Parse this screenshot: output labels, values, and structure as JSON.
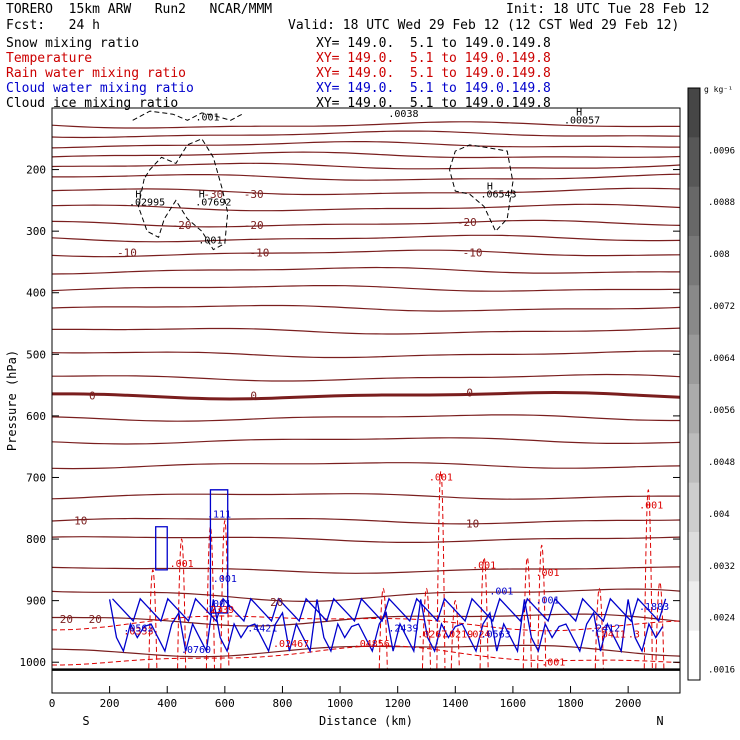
{
  "header": {
    "model": "TORERO  15km ARW   Run2   NCAR/MMM",
    "init": "Init: 18 UTC Tue 28 Feb 12",
    "fcst": "Fcst:   24 h",
    "valid": "Valid: 18 UTC Wed 29 Feb 12 (12 CST Wed 29 Feb 12)"
  },
  "fields": [
    {
      "name": "Snow mixing ratio",
      "xy": "XY= 149.0.  5.1 to 149.0.149.8",
      "color": "#000000"
    },
    {
      "name": "Temperature",
      "xy": "XY= 149.0.  5.1 to 149.0.149.8",
      "color": "#cc0000"
    },
    {
      "name": "Rain water mixing ratio",
      "xy": "XY= 149.0.  5.1 to 149.0.149.8",
      "color": "#cc0000"
    },
    {
      "name": "Cloud water mixing ratio",
      "xy": "XY= 149.0.  5.1 to 149.0.149.8",
      "color": "#0000cc"
    },
    {
      "name": "Cloud ice mixing ratio",
      "xy": "XY= 149.0.  5.1 to 149.0.149.8",
      "color": "#000000"
    }
  ],
  "colorbar": {
    "unit": "g kg⁻¹",
    "ticks": [
      ".0096",
      ".0088",
      ".008",
      ".0072",
      ".0064",
      ".0056",
      ".0048",
      ".004",
      ".0032",
      ".0024",
      ".0016"
    ]
  },
  "colors": {
    "temperature": "#7a1e1e",
    "rain": "#dd0000",
    "cloud_water": "#0000cc",
    "snow": "#000000"
  },
  "chart_data": {
    "type": "line",
    "xlabel": "Distance (km)",
    "ylabel": "Pressure (hPa)",
    "xlim": [
      0,
      2180
    ],
    "ylim": [
      1050,
      100
    ],
    "x_ticks": [
      0,
      200,
      400,
      600,
      800,
      1000,
      1200,
      1400,
      1600,
      1800,
      2000
    ],
    "y_ticks": [
      200,
      300,
      400,
      500,
      600,
      700,
      800,
      900,
      1000
    ],
    "left_label": "S",
    "right_label": "N",
    "temperature_isotherms": [
      {
        "label": "-30",
        "label_at": [
          [
            560,
            240
          ],
          [
            700,
            240
          ]
        ]
      },
      {
        "label": "-20",
        "label_at": [
          [
            450,
            290
          ],
          [
            700,
            290
          ],
          [
            1440,
            285
          ]
        ]
      },
      {
        "label": "-10",
        "label_at": [
          [
            260,
            335
          ],
          [
            720,
            335
          ],
          [
            1460,
            335
          ]
        ]
      },
      {
        "label": "0",
        "label_at": [
          [
            140,
            567
          ],
          [
            700,
            567
          ],
          [
            1450,
            562
          ]
        ]
      },
      {
        "label": "10",
        "label_at": [
          [
            100,
            770
          ],
          [
            1460,
            775
          ]
        ]
      },
      {
        "label": "20",
        "label_at": [
          [
            50,
            930
          ],
          [
            150,
            930
          ],
          [
            780,
            902
          ]
        ]
      }
    ],
    "snow_max": [
      {
        "label": ".001",
        "x": 540,
        "p": 120
      },
      {
        "label": ".0038",
        "x": 1220,
        "p": 115
      },
      {
        "label": ".00057",
        "x": 1840,
        "p": 125
      },
      {
        "label": ".02995",
        "x": 330,
        "p": 258
      },
      {
        "label": ".07692",
        "x": 560,
        "p": 258
      },
      {
        "label": ".06543",
        "x": 1550,
        "p": 245
      },
      {
        "label": ".001",
        "x": 550,
        "p": 320
      }
    ],
    "high_markers": [
      {
        "x": 300,
        "p": 245,
        "color": "#000000"
      },
      {
        "x": 520,
        "p": 245,
        "color": "#000000"
      },
      {
        "x": 1520,
        "p": 232,
        "color": "#000000"
      },
      {
        "x": 1830,
        "p": 112,
        "color": "#000000"
      }
    ],
    "rain_labels": [
      {
        "label": ".001",
        "x": 1350,
        "p": 705
      },
      {
        "label": ".001",
        "x": 2080,
        "p": 750
      },
      {
        "label": ".001",
        "x": 450,
        "p": 845
      },
      {
        "label": ".001",
        "x": 1500,
        "p": 848
      },
      {
        "label": ".001",
        "x": 1720,
        "p": 860
      },
      {
        "label": ".001",
        "x": 1740,
        "p": 1005
      },
      {
        "label": ".0333",
        "x": 300,
        "p": 955
      },
      {
        "label": ".2339",
        "x": 580,
        "p": 920
      },
      {
        "label": ".02467",
        "x": 830,
        "p": 975
      },
      {
        "label": ".04856",
        "x": 1110,
        "p": 975
      },
      {
        "label": ".0267",
        "x": 1320,
        "p": 960
      },
      {
        "label": ".0219",
        "x": 1410,
        "p": 960
      },
      {
        "label": ".024",
        "x": 1480,
        "p": 960
      },
      {
        "label": ".0411",
        "x": 1940,
        "p": 960
      },
      {
        "label": ".3",
        "x": 2020,
        "p": 960
      }
    ],
    "cloud_water_labels": [
      {
        "label": ".111",
        "x": 580,
        "p": 765
      },
      {
        "label": ".001",
        "x": 600,
        "p": 870
      },
      {
        "label": ".001",
        "x": 580,
        "p": 910
      },
      {
        "label": ".0562",
        "x": 300,
        "p": 950
      },
      {
        "label": ".4421",
        "x": 730,
        "p": 950
      },
      {
        "label": ".2439",
        "x": 1220,
        "p": 950
      },
      {
        "label": ".0563",
        "x": 1540,
        "p": 960
      },
      {
        "label": ".2412",
        "x": 1920,
        "p": 950
      },
      {
        "label": ".0760",
        "x": 500,
        "p": 985
      },
      {
        "label": ".001",
        "x": 1560,
        "p": 890
      },
      {
        "label": ".001",
        "x": 1720,
        "p": 905
      },
      {
        "label": ".1803",
        "x": 2090,
        "p": 915
      }
    ]
  }
}
